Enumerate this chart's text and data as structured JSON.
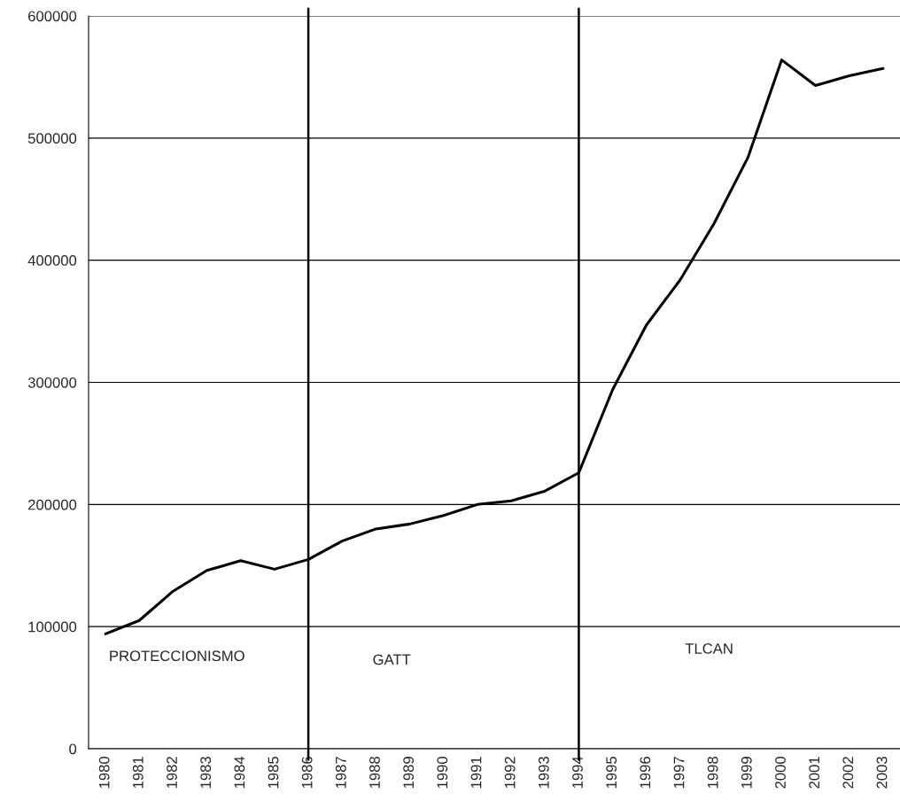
{
  "chart_data": {
    "type": "line",
    "categories": [
      "1980",
      "1981",
      "1982",
      "1983",
      "1984",
      "1985",
      "1986",
      "1987",
      "1988",
      "1989",
      "1990",
      "1991",
      "1992",
      "1993",
      "1994",
      "1995",
      "1996",
      "1997",
      "1998",
      "1999",
      "2000",
      "2001",
      "2002",
      "2003"
    ],
    "series": [
      {
        "color": "#000000",
        "values": [
          94000,
          105000,
          129000,
          146000,
          154000,
          147000,
          155000,
          170000,
          180000,
          184000,
          191000,
          200000,
          203000,
          211000,
          226000,
          294000,
          347000,
          384000,
          430000,
          484000,
          564000,
          543000,
          551000,
          557000
        ]
      }
    ],
    "ylim": [
      0,
      600000
    ],
    "yticks": [
      0,
      100000,
      200000,
      300000,
      400000,
      500000,
      600000
    ],
    "grid": "y",
    "marker": "none",
    "line_style": "solid",
    "ref_lines": [
      {
        "axis": "x",
        "value": "1986",
        "color": "#000000"
      },
      {
        "axis": "x",
        "value": "1994",
        "color": "#000000"
      }
    ],
    "annotations": [
      "PROTECCIONISMO",
      "GATT",
      "TLCAN"
    ]
  }
}
